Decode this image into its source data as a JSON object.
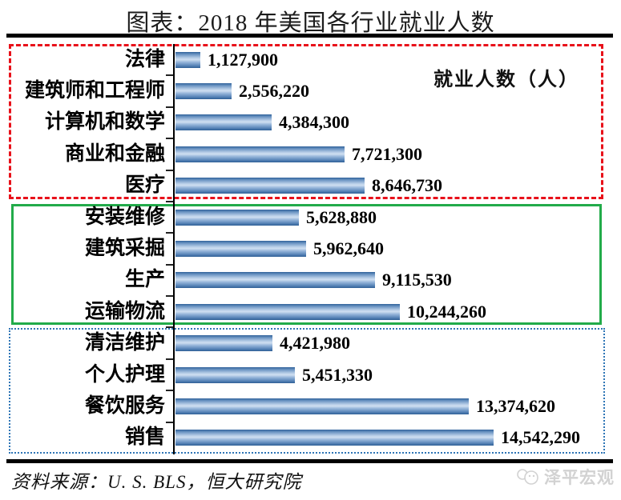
{
  "page": {
    "title": "图表：2018 年美国各行业就业人数",
    "legend": "就业人数（人）",
    "source": "资料来源：U. S.  BLS，恒大研究院",
    "watermark": "泽平宏观"
  },
  "colors": {
    "bar_dark": "#2f6096",
    "bar_light": "#cfdff1",
    "group1_border": "#e8111a",
    "group2_border": "#22ab4a",
    "group3_border": "#2e75b6",
    "rule": "#000000",
    "watermark": "#d2d2d2"
  },
  "chart_data": {
    "type": "bar",
    "orientation": "horizontal",
    "title": "图表：2018 年美国各行业就业人数",
    "legend": "就业人数（人）",
    "unit": "人",
    "xlim": [
      0,
      15000000
    ],
    "grid": false,
    "categories": [
      "法律",
      "建筑师和工程师",
      "计算机和数学",
      "商业和金融",
      "医疗",
      "安装维修",
      "建筑采掘",
      "生产",
      "运输物流",
      "清洁维护",
      "个人护理",
      "餐饮服务",
      "销售"
    ],
    "values": [
      1127900,
      2556220,
      4384300,
      7721300,
      8646730,
      5628880,
      5962640,
      9115530,
      10244260,
      4421980,
      5451330,
      13374620,
      14542290
    ],
    "value_labels": [
      "1,127,900",
      "2,556,220",
      "4,384,300",
      "7,721,300",
      "8,646,730",
      "5,628,880",
      "5,962,640",
      "9,115,530",
      "10,244,260",
      "4,421,980",
      "5,451,330",
      "13,374,620",
      "14,542,290"
    ],
    "groups": [
      {
        "style": "red-dashed",
        "from_index": 0,
        "to_index": 4
      },
      {
        "style": "green-solid",
        "from_index": 5,
        "to_index": 8
      },
      {
        "style": "blue-dotted",
        "from_index": 9,
        "to_index": 12
      }
    ]
  }
}
